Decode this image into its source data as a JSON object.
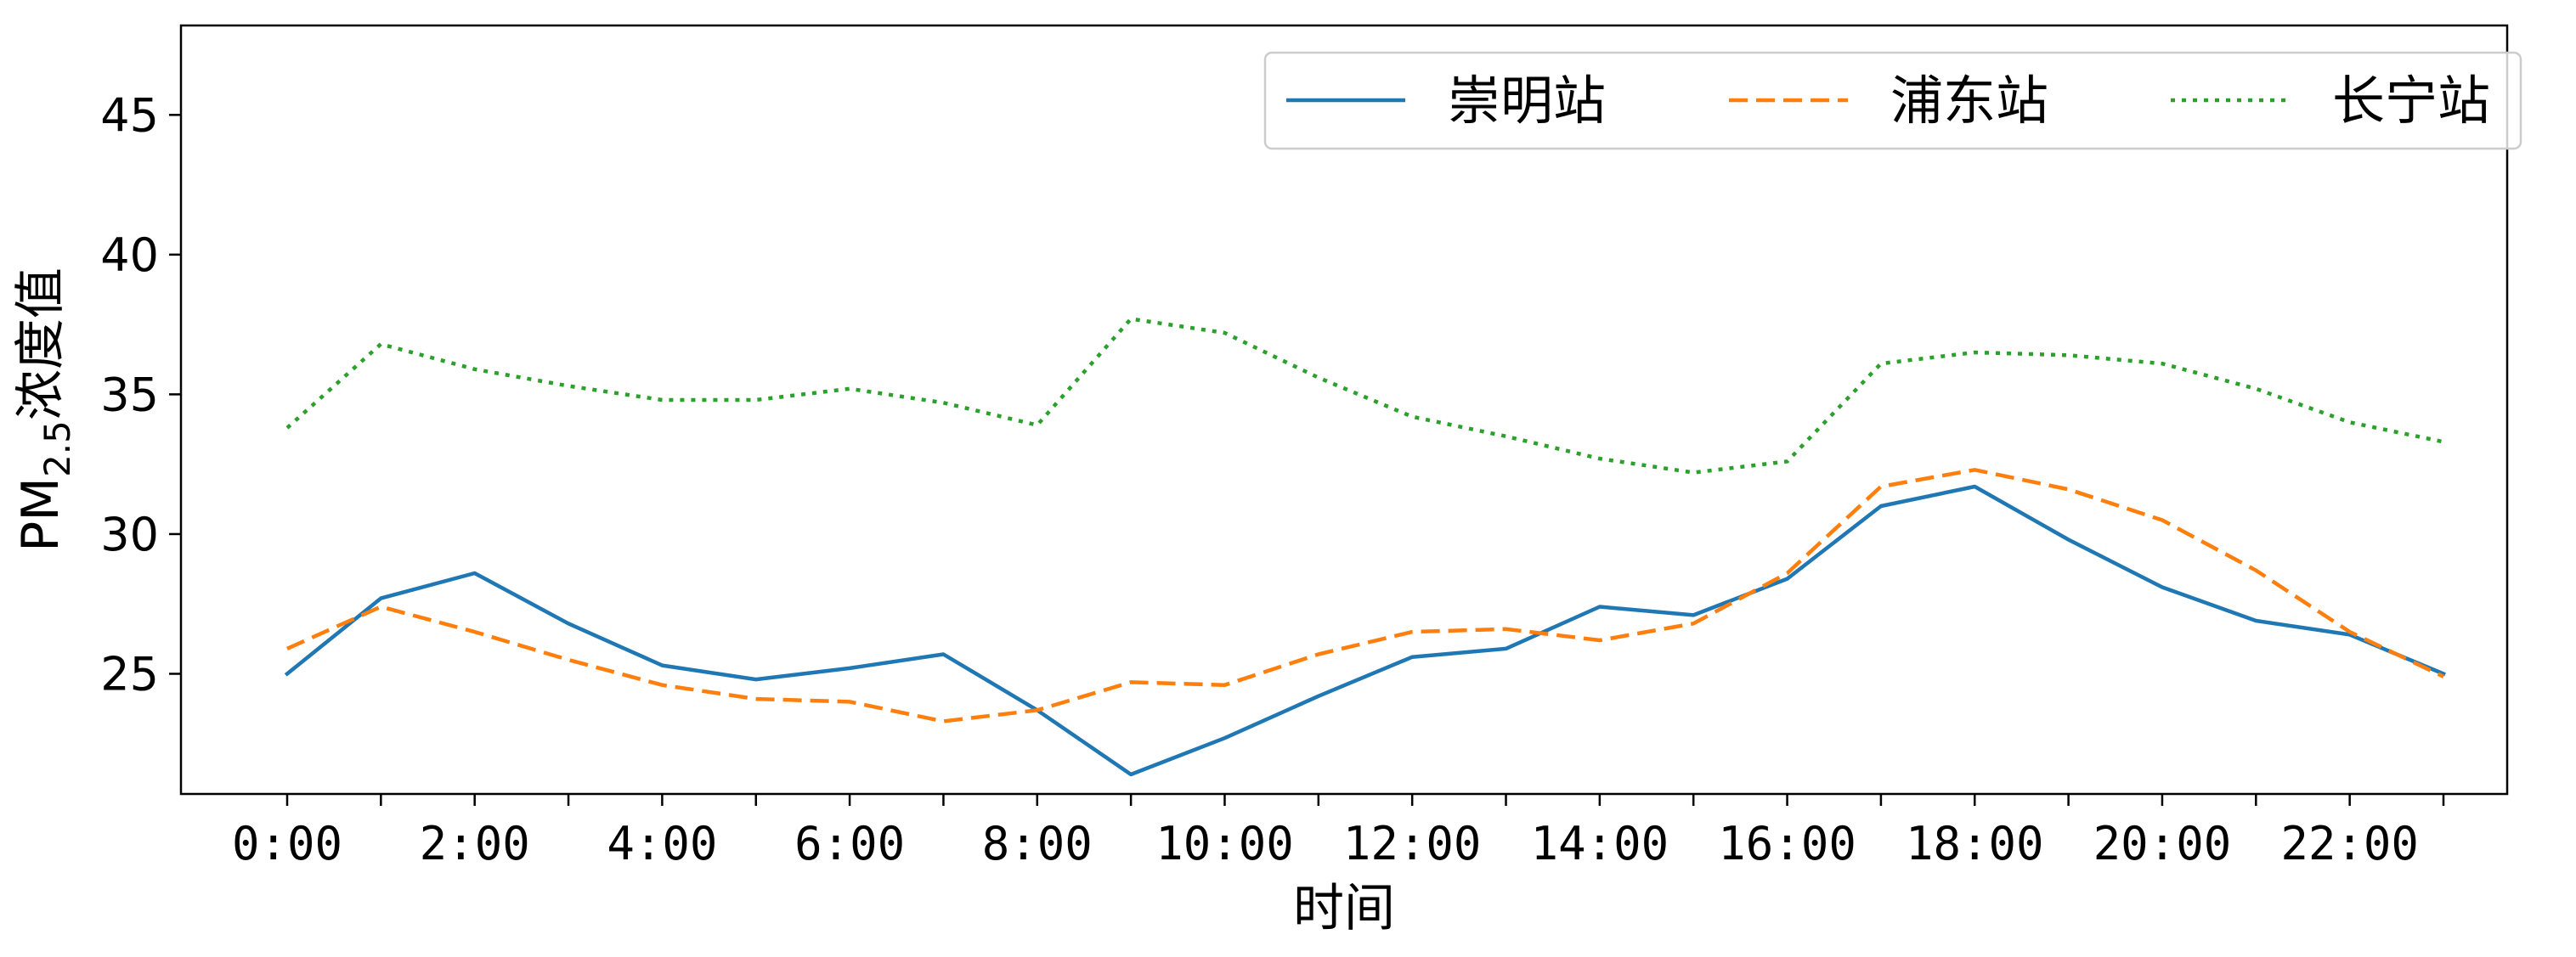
{
  "chart_data": {
    "type": "line",
    "x": [
      "0:00",
      "1:00",
      "2:00",
      "3:00",
      "4:00",
      "5:00",
      "6:00",
      "7:00",
      "8:00",
      "9:00",
      "10:00",
      "11:00",
      "12:00",
      "13:00",
      "14:00",
      "15:00",
      "16:00",
      "17:00",
      "18:00",
      "19:00",
      "20:00",
      "21:00",
      "22:00",
      "23:00"
    ],
    "xtick_labels": [
      "0:00",
      "2:00",
      "4:00",
      "6:00",
      "8:00",
      "10:00",
      "12:00",
      "14:00",
      "16:00",
      "18:00",
      "20:00",
      "22:00"
    ],
    "series": [
      {
        "name": "崇明站",
        "color": "#1f77b4",
        "linestyle": "solid",
        "values": [
          25.0,
          27.7,
          28.6,
          26.8,
          25.3,
          24.8,
          25.2,
          25.7,
          23.7,
          21.4,
          22.7,
          24.2,
          25.6,
          25.9,
          27.4,
          27.1,
          28.4,
          31.0,
          31.7,
          29.8,
          28.1,
          26.9,
          26.4,
          25.0
        ]
      },
      {
        "name": "浦东站",
        "color": "#ff7f0e",
        "linestyle": "dashed",
        "values": [
          25.9,
          27.4,
          26.5,
          25.5,
          24.6,
          24.1,
          24.0,
          23.3,
          23.7,
          24.7,
          24.6,
          25.7,
          26.5,
          26.6,
          26.2,
          26.8,
          28.6,
          31.7,
          32.3,
          31.6,
          30.5,
          28.7,
          26.5,
          24.9
        ]
      },
      {
        "name": "长宁站",
        "color": "#2ca02c",
        "linestyle": "dotted",
        "values": [
          33.8,
          36.8,
          35.9,
          35.3,
          34.8,
          34.8,
          35.2,
          34.7,
          33.9,
          37.7,
          37.2,
          35.6,
          34.2,
          33.5,
          32.7,
          32.2,
          32.6,
          36.1,
          36.5,
          36.4,
          36.1,
          35.2,
          34.0,
          33.3
        ]
      }
    ],
    "yticks": [
      25,
      30,
      35,
      40,
      45
    ],
    "ylim": [
      20.7,
      48.2
    ],
    "xlabel": "时间",
    "ylabel_main": "PM",
    "ylabel_sub": "2.5",
    "ylabel_suffix": "浓度值",
    "legend_position": "top-right",
    "legend_layout": "3 columns",
    "grid": false
  }
}
